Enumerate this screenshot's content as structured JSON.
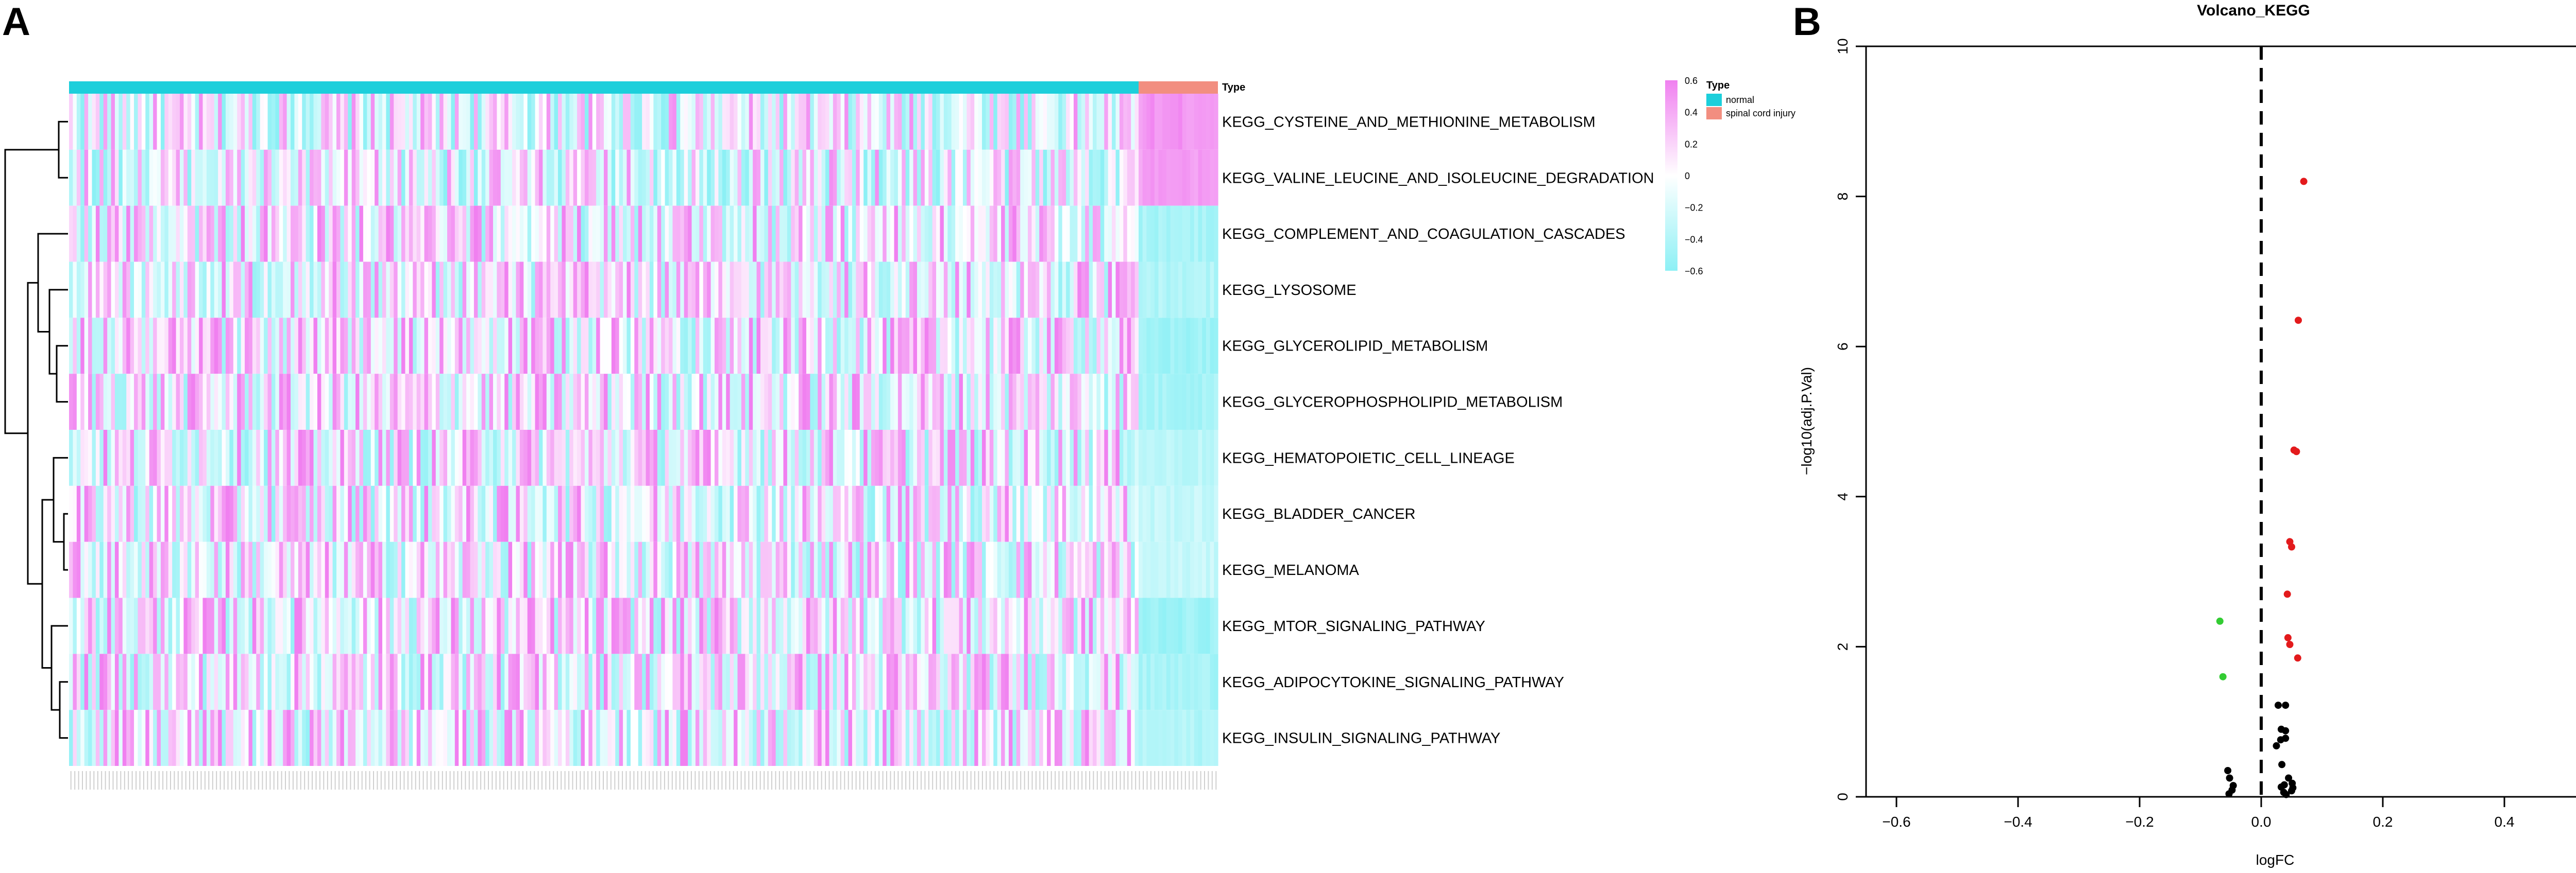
{
  "panels": {
    "a_label": "A",
    "b_label": "B"
  },
  "colors": {
    "normal": "#1CCFDB",
    "injury": "#F28E80",
    "low": "#8CF0F5",
    "mid": "#FFFFFF",
    "high": "#F080F0",
    "sig_up": "#E31A1C",
    "sig_down": "#33CC33",
    "nonsig": "#000000"
  },
  "chart_data": [
    {
      "type": "heatmap",
      "annotation": {
        "label": "Type",
        "legend_title": "Type",
        "groups": [
          {
            "name": "normal",
            "color": "#1CCFDB"
          },
          {
            "name": "spinal cord injury",
            "color": "#F28E80"
          }
        ]
      },
      "rows": [
        "KEGG_CYSTEINE_AND_METHIONINE_METABOLISM",
        "KEGG_VALINE_LEUCINE_AND_ISOLEUCINE_DEGRADATION",
        "KEGG_COMPLEMENT_AND_COAGULATION_CASCADES",
        "KEGG_LYSOSOME",
        "KEGG_GLYCEROLIPID_METABOLISM",
        "KEGG_GLYCEROPHOSPHOLIPID_METABOLISM",
        "KEGG_HEMATOPOIETIC_CELL_LINEAGE",
        "KEGG_BLADDER_CANCER",
        "KEGG_MELANOMA",
        "KEGG_MTOR_SIGNALING_PATHWAY",
        "KEGG_ADIPOCYTOKINE_SIGNALING_PATHWAY",
        "KEGG_INSULIN_SIGNALING_PATHWAY"
      ],
      "columns": {
        "normal_count": 280,
        "injury_count": 20
      },
      "injury_pattern": [
        0.5,
        0.45,
        -0.45,
        -0.4,
        -0.5,
        -0.45,
        -0.35,
        -0.3,
        -0.3,
        -0.5,
        -0.45,
        -0.4
      ],
      "color_scale": {
        "min": -0.6,
        "max": 0.6,
        "ticks": [
          0.6,
          0.4,
          0.2,
          0,
          -0.2,
          -0.4,
          -0.6
        ],
        "tick_labels": [
          "0.6",
          "0.4",
          "0.2",
          "0",
          "−0.2",
          "−0.4",
          "−0.6"
        ]
      },
      "dendrogram": "rows"
    },
    {
      "type": "scatter",
      "title": "Volcano_KEGG",
      "xlabel": "logFC",
      "ylabel": "−log10(adj.P.Val)",
      "xlim": [
        -0.65,
        0.65
      ],
      "ylim": [
        0,
        10
      ],
      "xticks": [
        -0.6,
        -0.4,
        -0.2,
        0.0,
        0.2,
        0.4,
        0.6
      ],
      "xtick_labels": [
        "−0.6",
        "−0.4",
        "−0.2",
        "0.0",
        "0.2",
        "0.4",
        "0.6"
      ],
      "yticks": [
        0,
        2,
        4,
        6,
        8,
        10
      ],
      "ytick_labels": [
        "0",
        "2",
        "4",
        "6",
        "8",
        "10"
      ],
      "vline": 0,
      "series": [
        {
          "x": [
            0.07,
            0.061,
            0.054,
            0.058,
            0.047,
            0.05,
            0.043,
            0.044,
            0.047,
            0.06
          ],
          "y": [
            8.2,
            6.35,
            4.62,
            4.6,
            3.4,
            3.33,
            2.7,
            2.12,
            2.03,
            1.85
          ]
        },
        {
          "x": [
            -0.068,
            -0.063
          ],
          "y": [
            2.34,
            1.6
          ]
        },
        {
          "x": [
            0.028,
            0.04,
            0.033,
            0.04,
            0.04,
            0.032,
            0.025,
            0.034,
            0.045,
            0.051,
            0.038,
            0.033,
            0.052,
            0.05,
            0.037,
            0.041,
            -0.055,
            -0.052,
            -0.046,
            -0.048,
            -0.053
          ],
          "y": [
            1.22,
            1.22,
            0.9,
            0.88,
            0.78,
            0.76,
            0.68,
            0.43,
            0.25,
            0.18,
            0.16,
            0.13,
            0.12,
            0.08,
            0.06,
            0.03,
            0.35,
            0.25,
            0.15,
            0.09,
            0.04
          ]
        }
      ]
    }
  ]
}
